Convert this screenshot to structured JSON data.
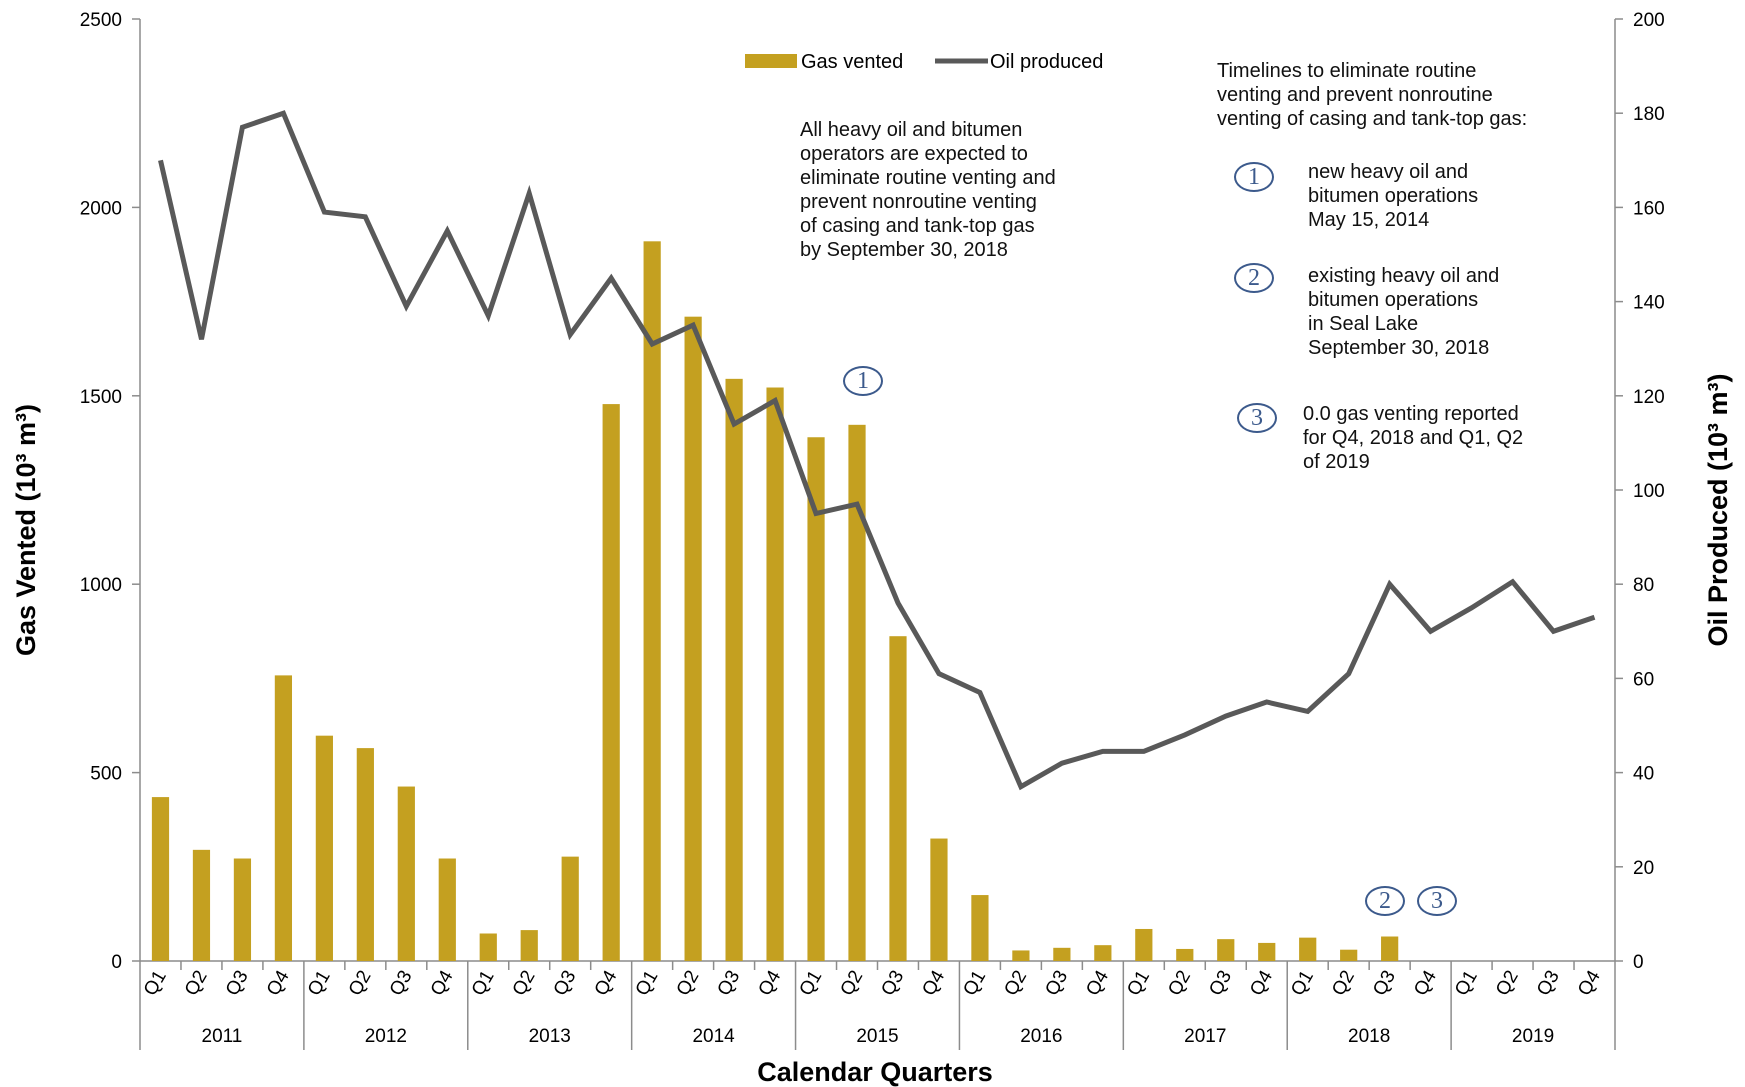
{
  "chart_data": {
    "type": "bar+line",
    "xlabel": "Calendar Quarters",
    "ylabel_left": "Gas Vented (10³ m³)",
    "ylabel_right": "Oil Produced (10³ m³)",
    "ylim_left": [
      0,
      2500
    ],
    "ylim_right": [
      0,
      200
    ],
    "yticks_left": [
      "0",
      "500",
      "1000",
      "1500",
      "2000",
      "2500"
    ],
    "yticks_right": [
      "0",
      "20",
      "40",
      "60",
      "80",
      "100",
      "120",
      "140",
      "160",
      "180",
      "200"
    ],
    "years": [
      "2011",
      "2012",
      "2013",
      "2014",
      "2015",
      "2016",
      "2017",
      "2018",
      "2019"
    ],
    "quarters": [
      "Q1",
      "Q2",
      "Q3",
      "Q4"
    ],
    "categories": [
      "2011 Q1",
      "2011 Q2",
      "2011 Q3",
      "2011 Q4",
      "2012 Q1",
      "2012 Q2",
      "2012 Q3",
      "2012 Q4",
      "2013 Q1",
      "2013 Q2",
      "2013 Q3",
      "2013 Q4",
      "2014 Q1",
      "2014 Q2",
      "2014 Q3",
      "2014 Q4",
      "2015 Q1",
      "2015 Q2",
      "2015 Q3",
      "2015 Q4",
      "2016 Q1",
      "2016 Q2",
      "2016 Q3",
      "2016 Q4",
      "2017 Q1",
      "2017 Q2",
      "2017 Q3",
      "2017 Q4",
      "2018 Q1",
      "2018 Q2",
      "2018 Q3",
      "2018 Q4",
      "2019 Q1",
      "2019 Q2",
      "2019 Q3",
      "2019 Q4"
    ],
    "series": [
      {
        "name": "Gas vented",
        "type": "bar",
        "axis": "left",
        "color": "#c4a020",
        "values": [
          435,
          295,
          272,
          758,
          598,
          565,
          463,
          272,
          73,
          82,
          277,
          1478,
          1910,
          1710,
          1545,
          1522,
          1390,
          1423,
          862,
          325,
          175,
          28,
          35,
          42,
          85,
          32,
          58,
          48,
          62,
          30,
          65,
          0,
          0,
          0,
          0,
          0
        ]
      },
      {
        "name": "Oil produced",
        "type": "line",
        "axis": "right",
        "color": "#595959",
        "values": [
          170,
          132,
          177,
          180,
          159,
          158,
          139,
          155,
          137,
          163,
          133,
          145,
          131,
          135,
          114,
          119,
          95,
          97,
          76,
          61,
          57,
          37,
          42,
          44.5,
          44.5,
          48,
          52,
          55,
          53,
          61,
          80,
          70,
          75,
          80.5,
          70,
          73
        ]
      }
    ],
    "legend": {
      "position": "top-center",
      "items": [
        "Gas vented",
        "Oil produced"
      ]
    }
  },
  "notes": {
    "center": "All heavy oil and bitumen\noperators are expected to\neliminate routine venting and\nprevent nonroutine venting\nof casing and tank-top gas\nby September 30, 2018",
    "timeline_title": "Timelines to eliminate routine\nventing and prevent nonroutine\nventing of casing and tank-top gas:",
    "items": [
      {
        "num": "1",
        "text": "new  heavy oil and\nbitumen operations\nMay 15,  2014"
      },
      {
        "num": "2",
        "text": "existing heavy oil and\nbitumen operations\nin Seal Lake\nSeptember 30, 2018"
      },
      {
        "num": "3",
        "text": "0.0 gas venting reported\nfor Q4, 2018 and Q1, Q2\nof 2019"
      }
    ]
  },
  "chart_markers": [
    {
      "num": "1",
      "at": "2015 Q2"
    },
    {
      "num": "2",
      "at": "2018 Q3"
    },
    {
      "num": "3",
      "at": "2018 Q4"
    }
  ]
}
